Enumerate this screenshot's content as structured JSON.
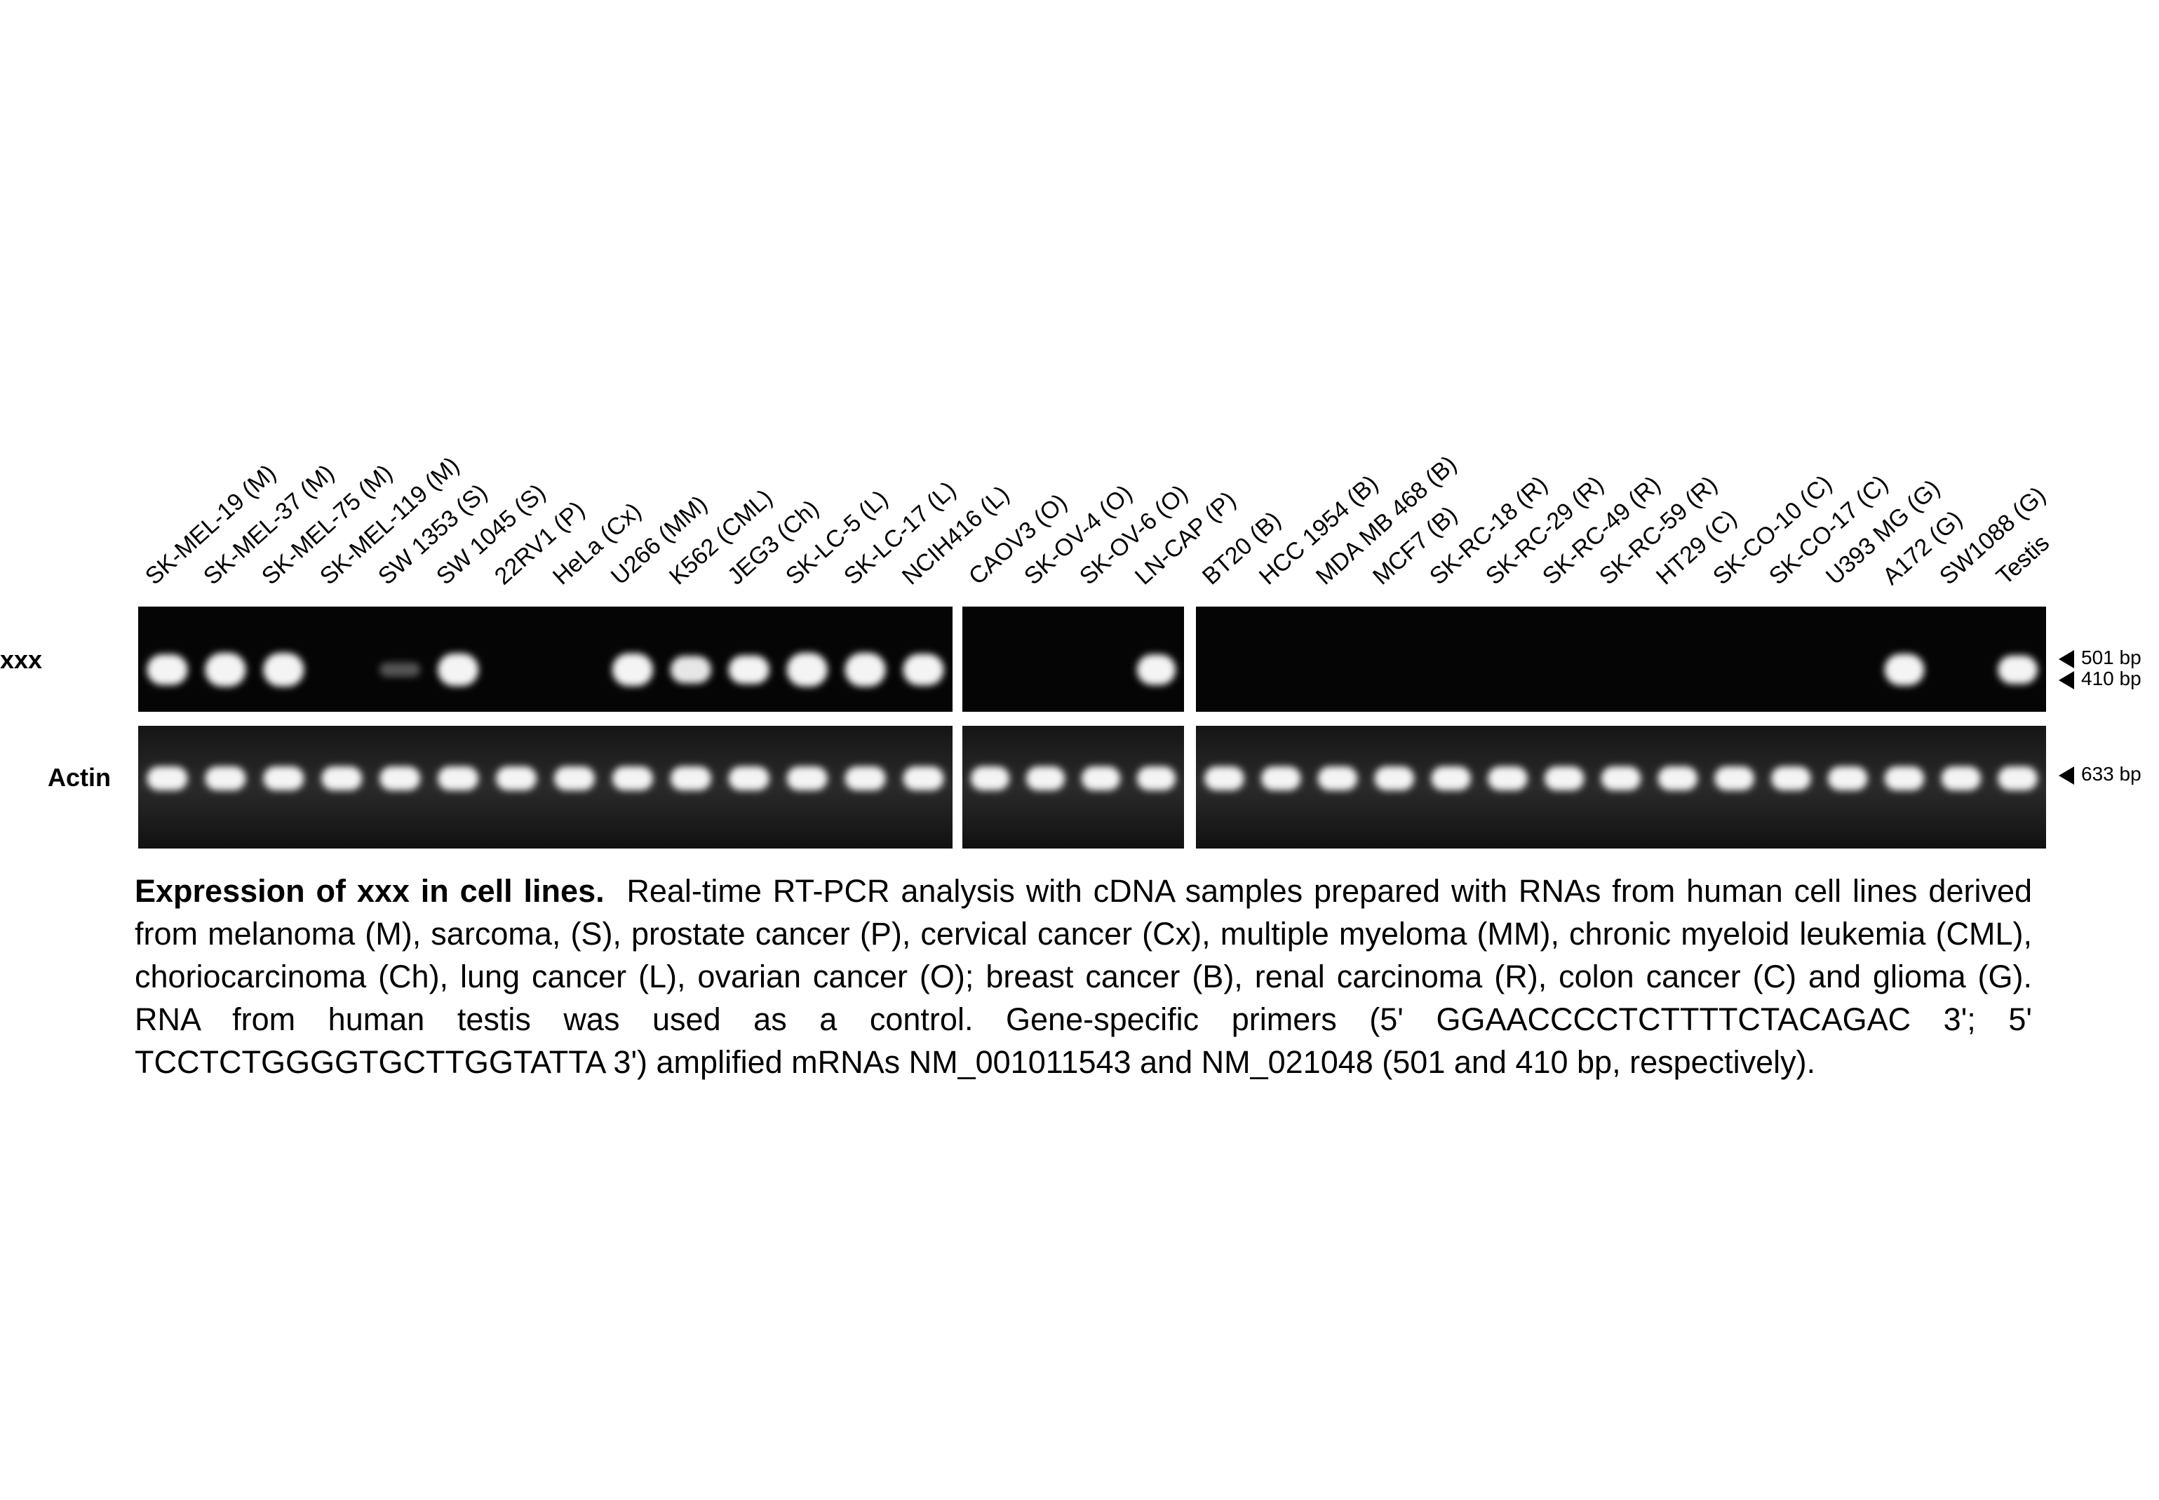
{
  "figure": {
    "row_labels": {
      "top": "xxx",
      "bottom": "Actin"
    },
    "markers": {
      "m501": "501 bp",
      "m410": "410 bp",
      "m633": "633 bp"
    },
    "panels": [
      {
        "lanes": [
          "SK-MEL-19 (M)",
          "SK-MEL-37 (M)",
          "SK-MEL-75 (M)",
          "SK-MEL-119 (M)",
          "SW 1353 (S)",
          "SW 1045 (S)",
          "22RV1 (P)",
          "HeLa (Cx)",
          "U266 (MM)",
          "K562 (CML)",
          "JEG3 (Ch)",
          "SK-LC-5 (L)",
          "SK-LC-17 (L)",
          "NCIH416 (L)"
        ],
        "xxx_band": [
          0.85,
          1.0,
          1.0,
          0.0,
          0.08,
          0.95,
          0.0,
          0.0,
          0.95,
          0.7,
          0.75,
          1.0,
          1.0,
          0.9
        ],
        "actin_band": [
          1,
          1,
          1,
          1,
          1,
          1,
          1,
          1,
          1,
          1,
          1,
          1,
          1,
          1
        ]
      },
      {
        "lanes": [
          "CAOV3 (O)",
          "SK-OV-4 (O)",
          "SK-OV-6 (O)",
          "LN-CAP (P)"
        ],
        "xxx_band": [
          0.0,
          0.0,
          0.0,
          0.85
        ],
        "actin_band": [
          1,
          1,
          1,
          1
        ]
      },
      {
        "lanes": [
          "BT20 (B)",
          "HCC 1954 (B)",
          "MDA MB 468 (B)",
          "MCF7 (B)",
          "SK-RC-18 (R)",
          "SK-RC-29 (R)",
          "SK-RC-49 (R)",
          "SK-RC-59 (R)",
          "HT29 (C)",
          "SK-CO-10 (C)",
          "SK-CO-17 (C)",
          "U393 MG (G)",
          "A172 (G)",
          "SW1088 (G)",
          "Testis"
        ],
        "xxx_band": [
          0.0,
          0.0,
          0.0,
          0.0,
          0.0,
          0.0,
          0.0,
          0.0,
          0.0,
          0.0,
          0.0,
          0.0,
          0.9,
          0.0,
          0.75
        ],
        "actin_band": [
          1,
          1,
          1,
          1,
          1,
          1,
          1,
          1,
          1,
          1,
          1,
          1,
          1,
          1,
          1
        ]
      }
    ]
  },
  "caption": {
    "title": "Expression of xxx in cell lines.",
    "body": "Real-time RT-PCR  analysis with cDNA samples prepared with RNAs from human cell lines derived from melanoma (M), sarcoma, (S), prostate cancer (P),  cervical cancer (Cx), multiple myeloma (MM), chronic myeloid leukemia (CML), choriocarcinoma (Ch), lung cancer (L), ovarian cancer (O); breast cancer (B), renal carcinoma (R), colon cancer (C) and glioma (G). RNA from human testis was used as a control. Gene-specific primers (5' GGAACCCCTCTTTTCTACAGAC 3'; 5' TCCTCTGGGGTGCTTGGTATTA 3') amplified mRNAs NM_001011543 and NM_021048 (501 and 410 bp, respectively)."
  },
  "colors": {
    "gel": "#050505",
    "band": "#f4f4f4",
    "actin_gel": "#1c1c1c"
  }
}
